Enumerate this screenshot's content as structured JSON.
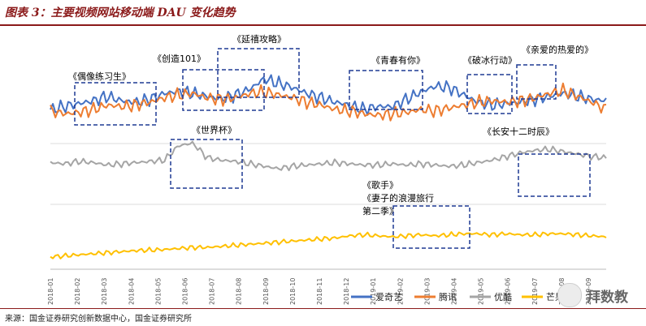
{
  "header": {
    "title": "图表 3：主要视频网站移动端 DAU 变化趋势"
  },
  "footer": {
    "source": "来源：国金证券研究创新数据中心，国金证券研究所"
  },
  "watermark": {
    "text": "拜数教"
  },
  "chart_data": {
    "type": "line",
    "title": "",
    "x_tick_labels": [
      "2018-01",
      "2018-02",
      "2018-03",
      "2018-04",
      "2018-05",
      "2018-06",
      "2018-07",
      "2018-08",
      "2018-09",
      "2018-10",
      "2018-11",
      "2018-12",
      "2019-01",
      "2019-02",
      "2019-03",
      "2019-04",
      "2019-05",
      "2019-06",
      "2019-07",
      "2019-08",
      "2019-09"
    ],
    "legend": {
      "position": "bottom-right"
    },
    "series": [
      {
        "name": "爱奇艺",
        "color": "#4472C4",
        "values": [
          0.3,
          0.34,
          0.38,
          0.42,
          0.48,
          0.42,
          0.4,
          0.44,
          0.52,
          0.55,
          0.52,
          0.48,
          0.44,
          0.5,
          0.58,
          0.72,
          0.66,
          0.6,
          0.52,
          0.46,
          0.4,
          0.36,
          0.3,
          0.34,
          0.34,
          0.44,
          0.54,
          0.62,
          0.6,
          0.5,
          0.4,
          0.36,
          0.38,
          0.4,
          0.44,
          0.48,
          0.52,
          0.48,
          0.44,
          0.42
        ]
      },
      {
        "name": "腾讯",
        "color": "#ED7D31",
        "values": [
          0.28,
          0.24,
          0.26,
          0.3,
          0.36,
          0.34,
          0.36,
          0.4,
          0.46,
          0.5,
          0.52,
          0.46,
          0.44,
          0.46,
          0.52,
          0.54,
          0.5,
          0.46,
          0.4,
          0.36,
          0.3,
          0.28,
          0.24,
          0.22,
          0.24,
          0.26,
          0.3,
          0.28,
          0.32,
          0.36,
          0.4,
          0.42,
          0.4,
          0.42,
          0.46,
          0.52,
          0.56,
          0.48,
          0.4,
          0.3
        ]
      },
      {
        "name": "优酷",
        "color": "#A5A5A5",
        "values": [
          0.62,
          0.6,
          0.64,
          0.62,
          0.58,
          0.6,
          0.62,
          0.64,
          0.66,
          0.9,
          0.94,
          0.7,
          0.66,
          0.64,
          0.6,
          0.56,
          0.52,
          0.56,
          0.58,
          0.6,
          0.62,
          0.6,
          0.58,
          0.58,
          0.6,
          0.58,
          0.6,
          0.58,
          0.56,
          0.58,
          0.62,
          0.66,
          0.72,
          0.78,
          0.82,
          0.84,
          0.8,
          0.76,
          0.72,
          0.7
        ]
      },
      {
        "name": "芒果tv",
        "color": "#FFC000",
        "values": [
          0.08,
          0.1,
          0.12,
          0.14,
          0.16,
          0.18,
          0.2,
          0.21,
          0.22,
          0.24,
          0.26,
          0.26,
          0.28,
          0.3,
          0.32,
          0.34,
          0.36,
          0.38,
          0.4,
          0.42,
          0.44,
          0.48,
          0.5,
          0.48,
          0.46,
          0.48,
          0.5,
          0.48,
          0.5,
          0.52,
          0.52,
          0.5,
          0.52,
          0.5,
          0.5,
          0.52,
          0.52,
          0.5,
          0.48,
          0.46
        ]
      }
    ],
    "annotations": [
      "《偶像练习生》",
      "《创造101》",
      "《延禧攻略》",
      "《青春有你》",
      "《破冰行动》",
      "《亲爱的热爱的》",
      "《世界杯》",
      "《长安十二时辰》",
      "《歌手》",
      "《妻子的浪漫旅行",
      "第二季》"
    ],
    "annotation_colors": {
      "box": "#1F3A93",
      "text": "#000000"
    },
    "grid": false
  }
}
